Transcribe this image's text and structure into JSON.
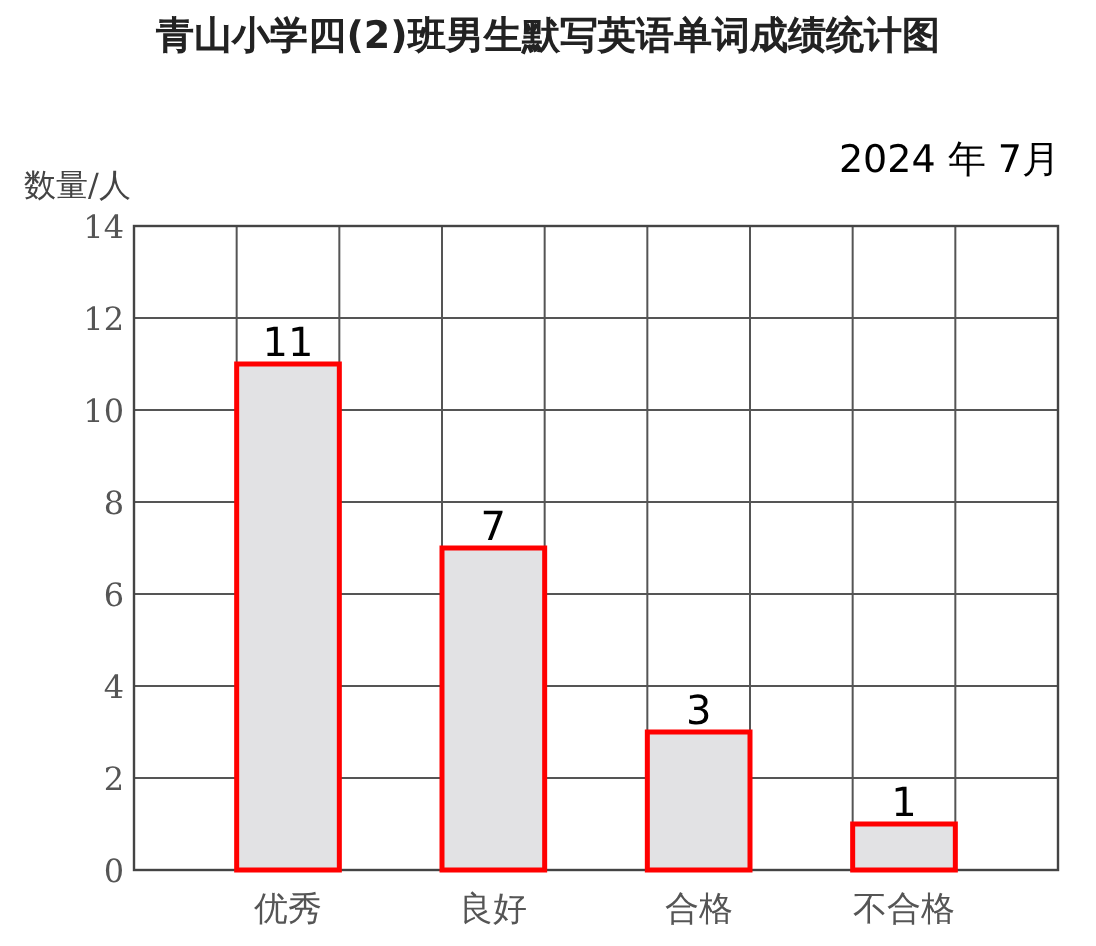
{
  "chart_data": {
    "type": "bar",
    "title": "青山小学四(2)班男生默写英语单词成绩统计图",
    "annotations": [
      "2024 年 7月"
    ],
    "ylabel": "数量/人",
    "categories": [
      "优秀",
      "良好",
      "合格",
      "不合格"
    ],
    "values": [
      11,
      7,
      3,
      1
    ],
    "color": "#e2e2e4",
    "ylim": [
      0,
      14
    ],
    "yticks": [
      0,
      2,
      4,
      6,
      8,
      10,
      12,
      14
    ],
    "grid": true,
    "data_labels": true
  }
}
